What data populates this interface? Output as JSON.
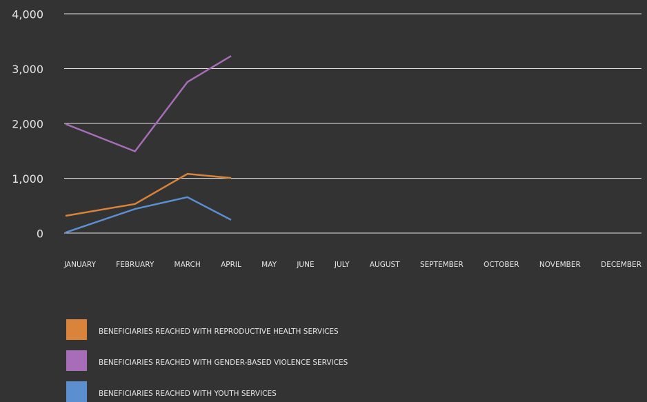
{
  "chart_data": {
    "type": "line",
    "categories": [
      "JANUARY",
      "FEBRUARY",
      "MARCH",
      "APRIL",
      "MAY",
      "JUNE",
      "JULY",
      "AUGUST",
      "SEPTEMBER",
      "OCTOBER",
      "NOVEMBER",
      "DECEMBER"
    ],
    "series": [
      {
        "name": "BENEFICIARIES REACHED WITH REPRODUCTIVE HEALTH SERVICES",
        "color": "#d9843a",
        "values": [
          315,
          530,
          1080,
          1005,
          null,
          null,
          null,
          null,
          null,
          null,
          null,
          null
        ]
      },
      {
        "name": "BENEFICIARIES REACHED WITH GENDER-BASED VIOLENCE SERVICES",
        "color": "#a86db8",
        "values": [
          1990,
          1490,
          2755,
          3230,
          null,
          null,
          null,
          null,
          null,
          null,
          null,
          null
        ]
      },
      {
        "name": "BENEFICIARIES REACHED WITH YOUTH SERVICES",
        "color": "#5b8fd0",
        "values": [
          10,
          440,
          655,
          240,
          null,
          null,
          null,
          null,
          null,
          null,
          null,
          null
        ]
      }
    ],
    "ylim": [
      0,
      4000
    ],
    "yticks": [
      0,
      {
        "value": 1000,
        "label": "1,000"
      },
      {
        "value": 2000,
        "label": "2,000"
      },
      {
        "value": 3000,
        "label": "3,000"
      },
      {
        "value": 4000,
        "label": "4,000"
      }
    ],
    "grid": true
  }
}
